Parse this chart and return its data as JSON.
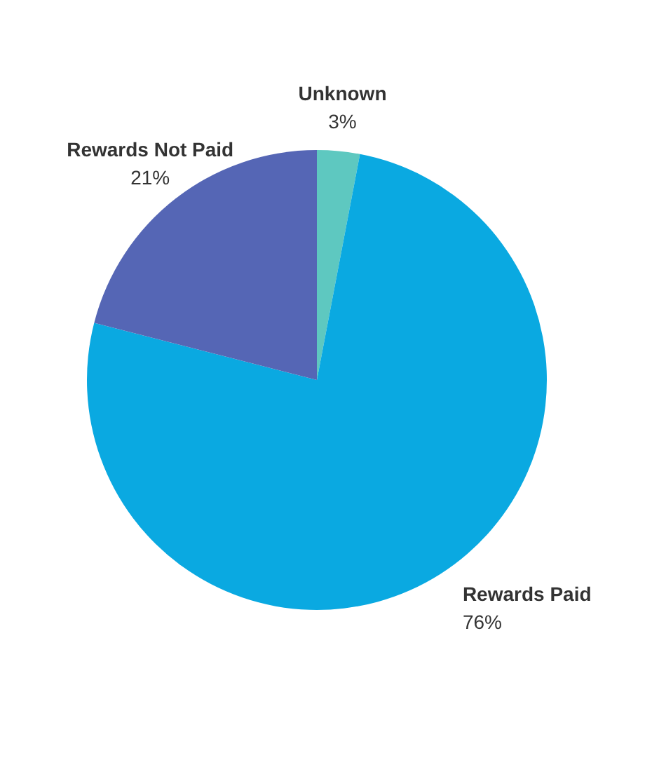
{
  "chart_data": {
    "type": "pie",
    "categories": [
      "Unknown",
      "Rewards Paid",
      "Rewards Not Paid"
    ],
    "values": [
      3,
      76,
      21
    ],
    "colors": [
      "#5ec8c0",
      "#0aa9e1",
      "#5566b5"
    ],
    "value_labels": [
      "3%",
      "76%",
      "21%"
    ],
    "legend": false
  }
}
